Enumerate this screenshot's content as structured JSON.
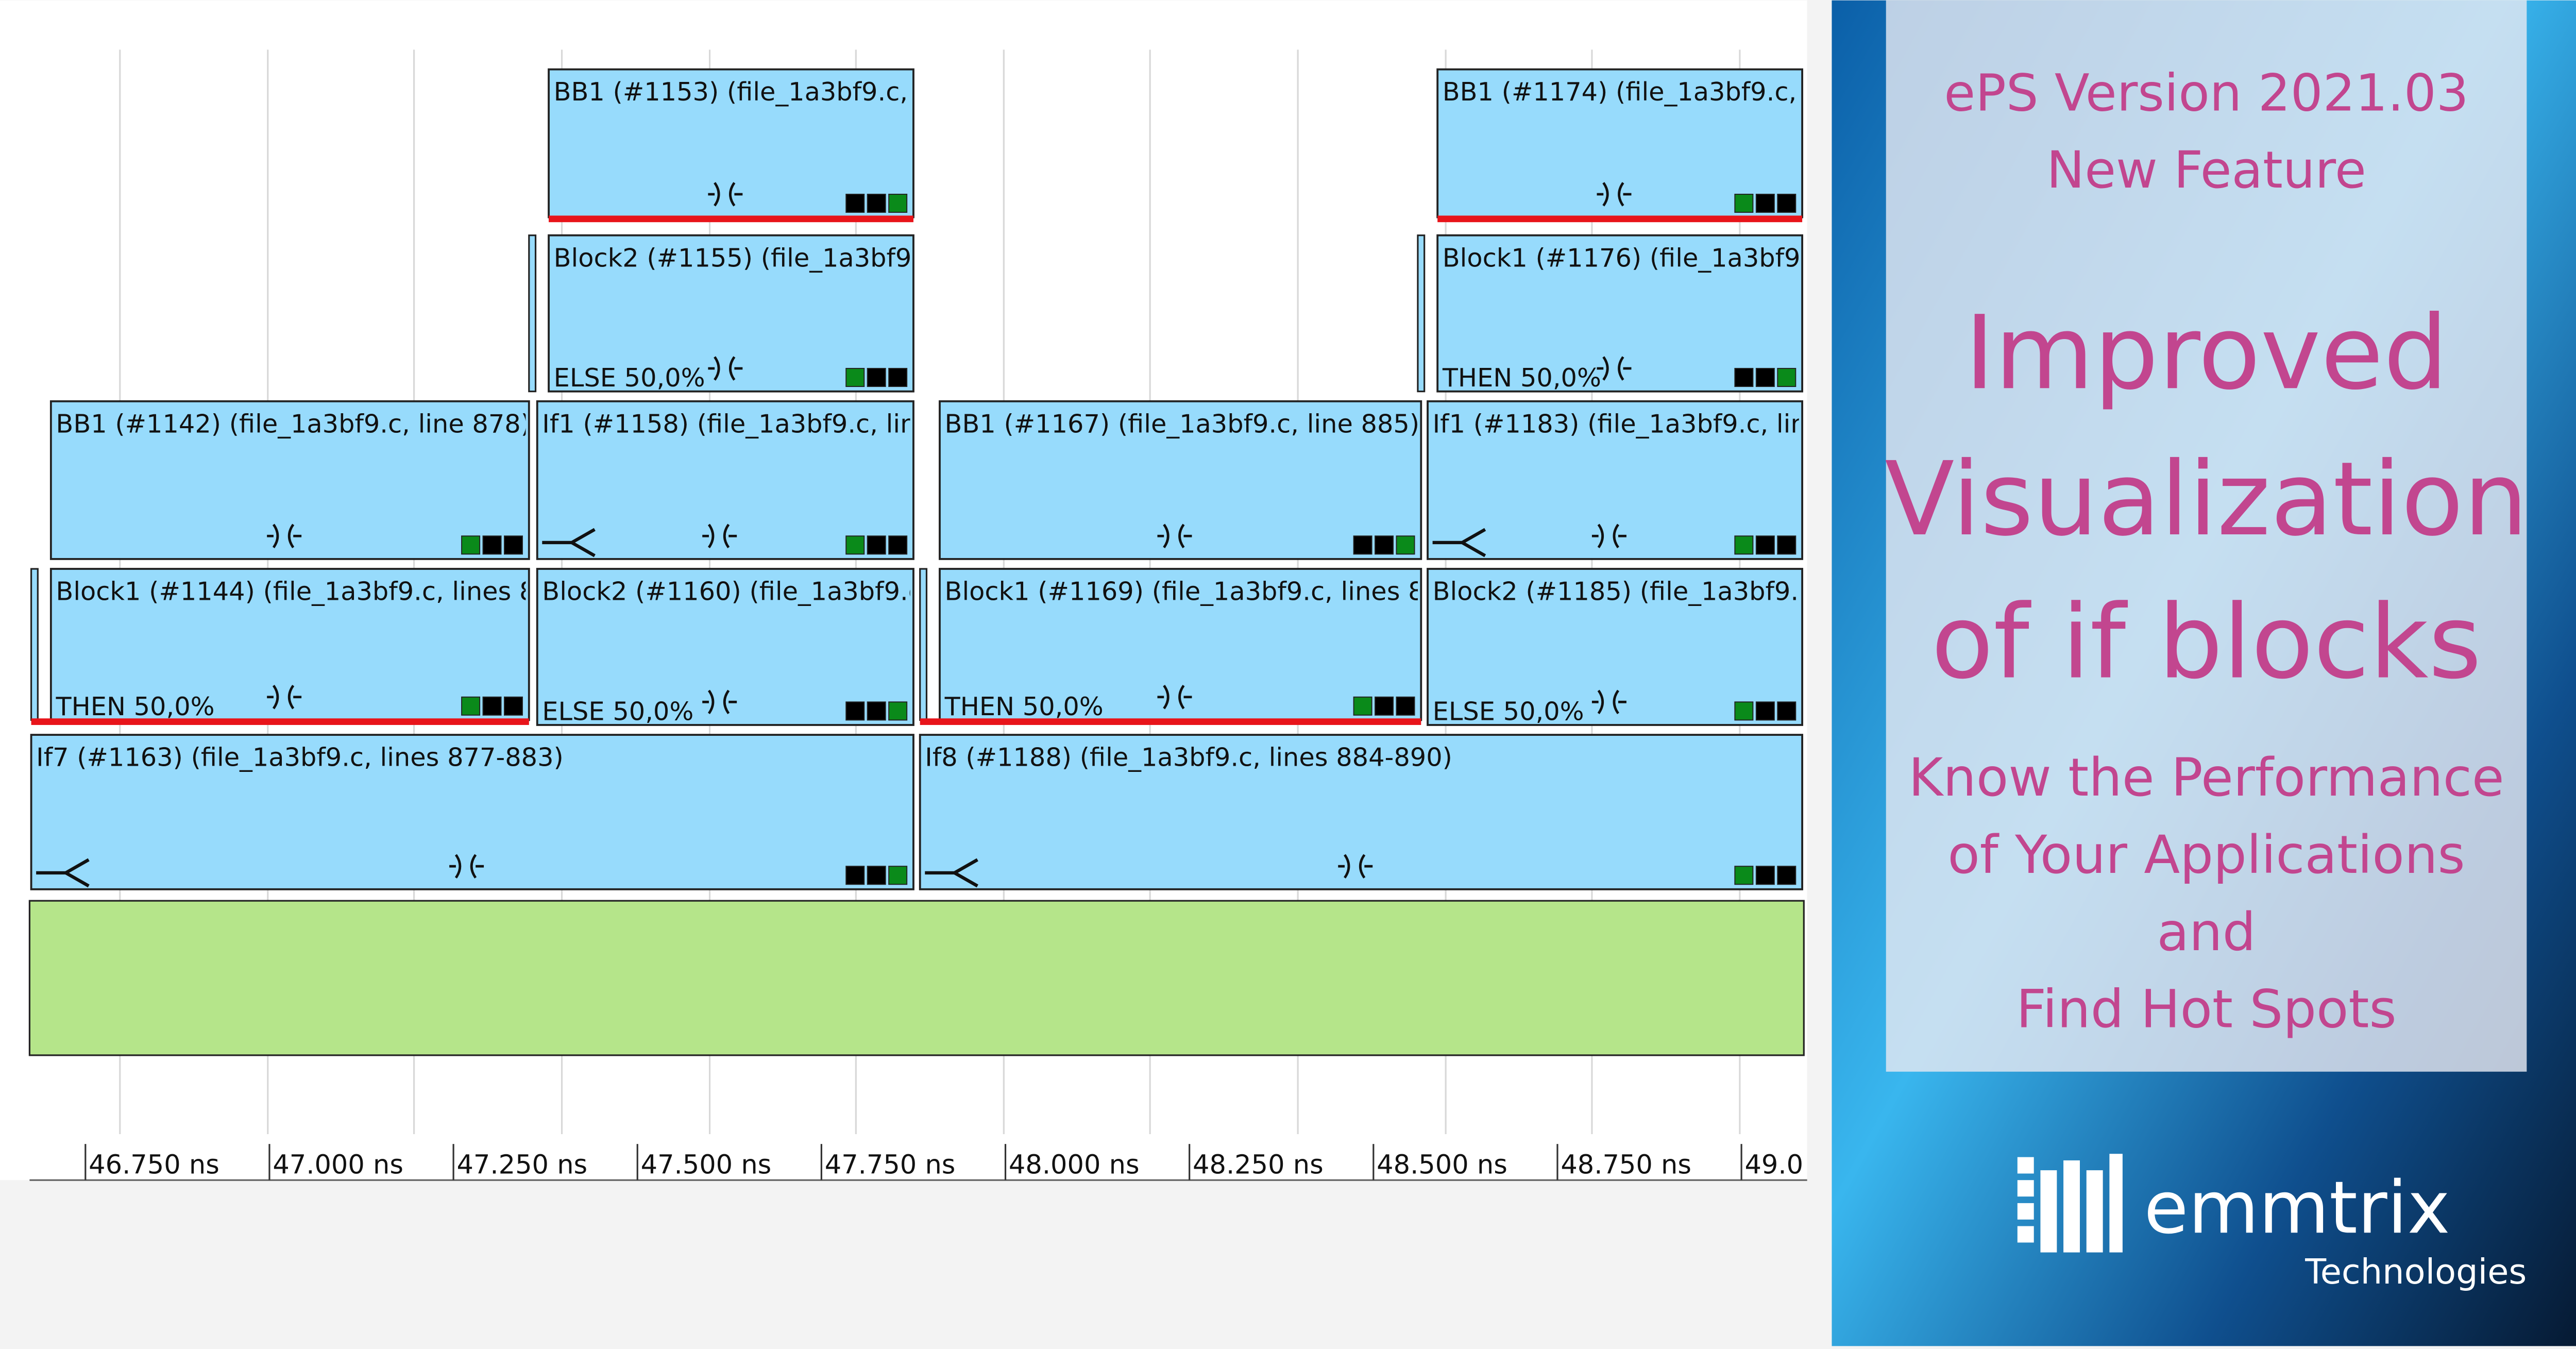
{
  "timeline": {
    "blocks": [
      {
        "label": "BB1 (#1153)  (file_1a3bf9.c,"
      },
      {
        "label": "BB1 (#1174)  (file_1a3bf9.c,"
      },
      {
        "label": "Block2 (#1155)  (file_1a3bf9",
        "branch": "ELSE 50,0%"
      },
      {
        "label": "Block1 (#1176)  (file_1a3bf9",
        "branch": "THEN 50,0%"
      },
      {
        "label": "BB1 (#1142)  (file_1a3bf9.c, line 878)"
      },
      {
        "label": "If1 (#1158)  (file_1a3bf9.c, lin"
      },
      {
        "label": "BB1 (#1167)  (file_1a3bf9.c, line 885)"
      },
      {
        "label": "If1 (#1183)  (file_1a3bf9.c, lin"
      },
      {
        "label": "Block1 (#1144)  (file_1a3bf9.c, lines 8",
        "branch": "THEN 50,0%"
      },
      {
        "label": "Block2 (#1160)  (file_1a3bf9.c",
        "branch": "ELSE 50,0%"
      },
      {
        "label": "Block1 (#1169)  (file_1a3bf9.c, lines 8",
        "branch": "THEN 50,0%"
      },
      {
        "label": "Block2 (#1185)  (file_1a3bf9.",
        "branch": "ELSE 50,0%"
      },
      {
        "label": "If7 (#1163)  (file_1a3bf9.c, lines 877-883)"
      },
      {
        "label": "If8 (#1188)  (file_1a3bf9.c, lines 884-890)"
      }
    ],
    "axis_labels": [
      "46.750 ns",
      "47.000 ns",
      "47.250 ns",
      "47.500 ns",
      "47.750 ns",
      "48.000 ns",
      "48.250 ns",
      "48.500 ns",
      "48.750 ns",
      "49.0"
    ]
  },
  "banner": {
    "version": "ePS Version 2021.03",
    "feature": "New Feature",
    "headline": [
      "Improved",
      "Visualization",
      "of if blocks"
    ],
    "tagline": [
      "Know the Performance",
      "of Your Applications",
      "and",
      "Find Hot Spots"
    ],
    "logo": {
      "name": "emmtrix",
      "sub": "Technologies"
    }
  }
}
